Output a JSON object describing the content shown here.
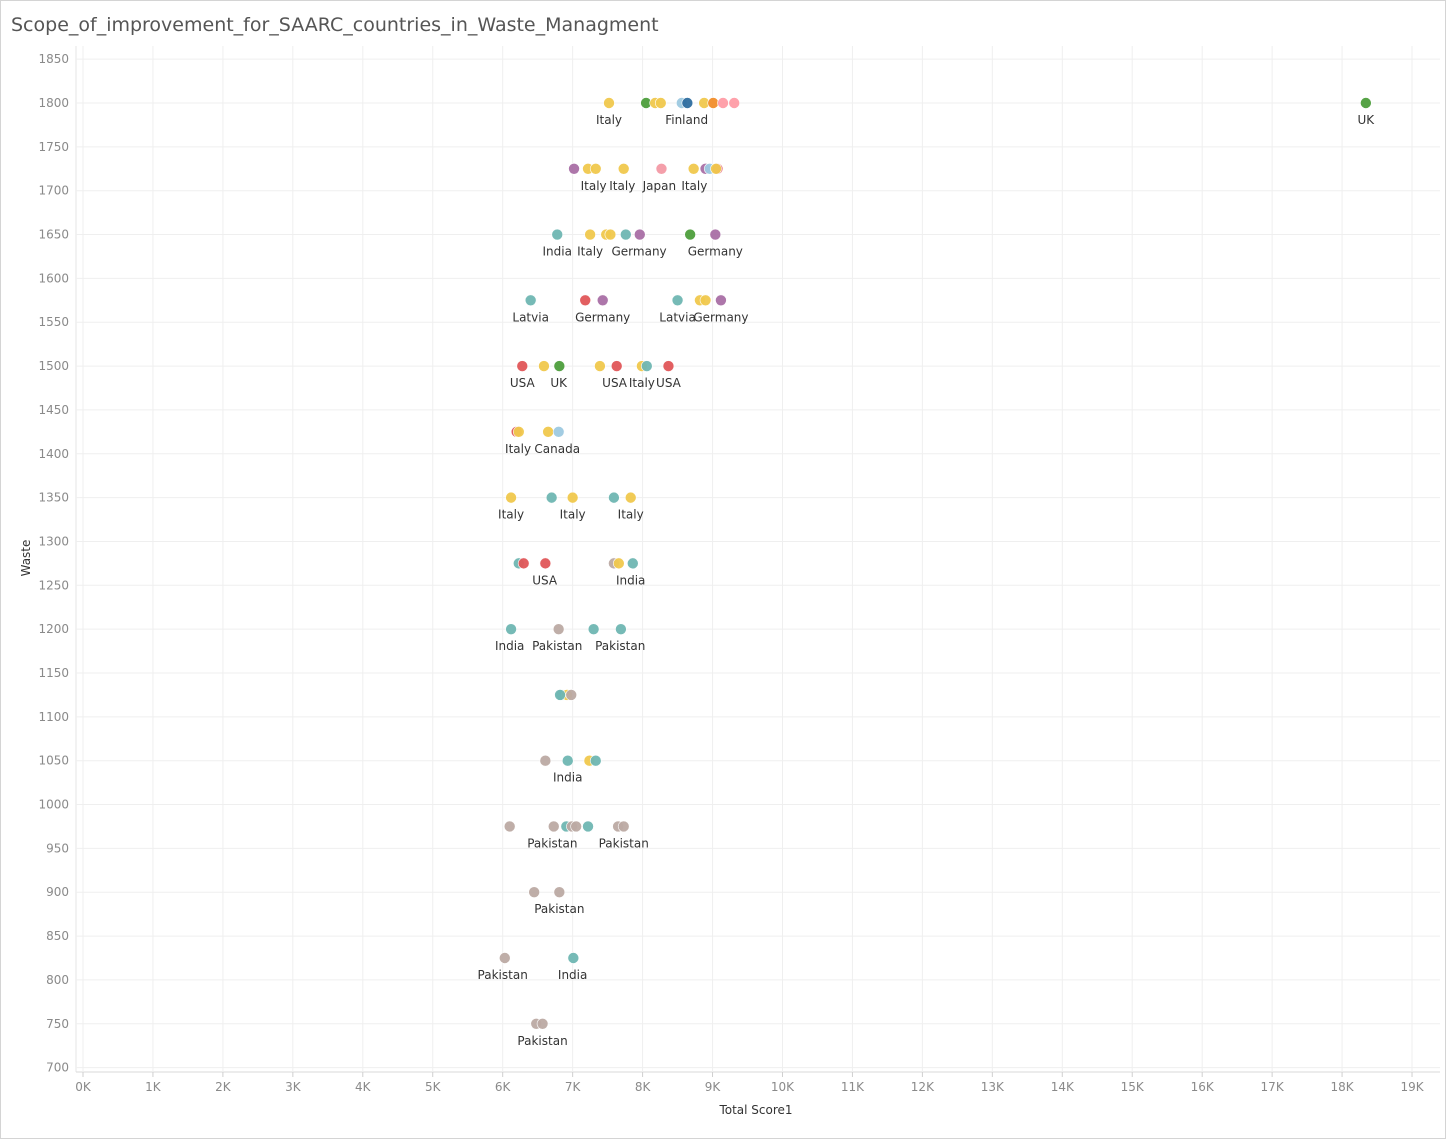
{
  "title": "Scope_of_improvement_for_SAARC_countries_in_Waste_Managment",
  "chart_data": {
    "type": "scatter",
    "title": "Scope_of_improvement_for_SAARC_countries_in_Waste_Managment",
    "xlabel": "Total Score1",
    "ylabel": "Waste",
    "xlim": [
      -100,
      19400
    ],
    "ylim": [
      695,
      1865
    ],
    "grid": true,
    "legend": "none",
    "x_ticks": [
      {
        "v": 0,
        "label": "0K"
      },
      {
        "v": 1000,
        "label": "1K"
      },
      {
        "v": 2000,
        "label": "2K"
      },
      {
        "v": 3000,
        "label": "3K"
      },
      {
        "v": 4000,
        "label": "4K"
      },
      {
        "v": 5000,
        "label": "5K"
      },
      {
        "v": 6000,
        "label": "6K"
      },
      {
        "v": 7000,
        "label": "7K"
      },
      {
        "v": 8000,
        "label": "8K"
      },
      {
        "v": 9000,
        "label": "9K"
      },
      {
        "v": 10000,
        "label": "10K"
      },
      {
        "v": 11000,
        "label": "11K"
      },
      {
        "v": 12000,
        "label": "12K"
      },
      {
        "v": 13000,
        "label": "13K"
      },
      {
        "v": 14000,
        "label": "14K"
      },
      {
        "v": 15000,
        "label": "15K"
      },
      {
        "v": 16000,
        "label": "16K"
      },
      {
        "v": 17000,
        "label": "17K"
      },
      {
        "v": 18000,
        "label": "18K"
      },
      {
        "v": 19000,
        "label": "19K"
      }
    ],
    "y_ticks": [
      {
        "v": 700,
        "label": "700"
      },
      {
        "v": 750,
        "label": "750"
      },
      {
        "v": 800,
        "label": "800"
      },
      {
        "v": 850,
        "label": "850"
      },
      {
        "v": 900,
        "label": "900"
      },
      {
        "v": 950,
        "label": "950"
      },
      {
        "v": 1000,
        "label": "1000"
      },
      {
        "v": 1050,
        "label": "1050"
      },
      {
        "v": 1100,
        "label": "1100"
      },
      {
        "v": 1150,
        "label": "1150"
      },
      {
        "v": 1200,
        "label": "1200"
      },
      {
        "v": 1250,
        "label": "1250"
      },
      {
        "v": 1300,
        "label": "1300"
      },
      {
        "v": 1350,
        "label": "1350"
      },
      {
        "v": 1400,
        "label": "1400"
      },
      {
        "v": 1450,
        "label": "1450"
      },
      {
        "v": 1500,
        "label": "1500"
      },
      {
        "v": 1550,
        "label": "1550"
      },
      {
        "v": 1600,
        "label": "1600"
      },
      {
        "v": 1650,
        "label": "1650"
      },
      {
        "v": 1700,
        "label": "1700"
      },
      {
        "v": 1750,
        "label": "1750"
      },
      {
        "v": 1800,
        "label": "1800"
      },
      {
        "v": 1850,
        "label": "1850"
      }
    ],
    "colors": {
      "yellow": "#f1c94d",
      "green": "#4e9f3d",
      "lightblue": "#9ecae1",
      "darkblue": "#2f6ea0",
      "orange": "#f28e2b",
      "salmon": "#ff9da7",
      "pink": "#f49aa6",
      "purple": "#a96fa6",
      "teal": "#6fb7b3",
      "red": "#e15759",
      "taupe": "#bcaaa4"
    },
    "points": [
      {
        "x": 7520,
        "y": 1800,
        "c": "yellow"
      },
      {
        "x": 8050,
        "y": 1800,
        "c": "green"
      },
      {
        "x": 8180,
        "y": 1800,
        "c": "yellow"
      },
      {
        "x": 8260,
        "y": 1800,
        "c": "yellow"
      },
      {
        "x": 8560,
        "y": 1800,
        "c": "lightblue"
      },
      {
        "x": 8640,
        "y": 1800,
        "c": "darkblue"
      },
      {
        "x": 8880,
        "y": 1800,
        "c": "yellow"
      },
      {
        "x": 9010,
        "y": 1800,
        "c": "orange"
      },
      {
        "x": 9150,
        "y": 1800,
        "c": "salmon"
      },
      {
        "x": 9310,
        "y": 1800,
        "c": "salmon"
      },
      {
        "x": 18340,
        "y": 1800,
        "c": "green"
      },
      {
        "x": 7020,
        "y": 1725,
        "c": "purple"
      },
      {
        "x": 7220,
        "y": 1725,
        "c": "yellow"
      },
      {
        "x": 7330,
        "y": 1725,
        "c": "yellow"
      },
      {
        "x": 7730,
        "y": 1725,
        "c": "yellow"
      },
      {
        "x": 8270,
        "y": 1725,
        "c": "pink"
      },
      {
        "x": 8730,
        "y": 1725,
        "c": "yellow"
      },
      {
        "x": 8900,
        "y": 1725,
        "c": "purple"
      },
      {
        "x": 8960,
        "y": 1725,
        "c": "lightblue"
      },
      {
        "x": 9070,
        "y": 1725,
        "c": "red"
      },
      {
        "x": 9050,
        "y": 1725,
        "c": "yellow"
      },
      {
        "x": 6780,
        "y": 1650,
        "c": "teal"
      },
      {
        "x": 7250,
        "y": 1650,
        "c": "yellow"
      },
      {
        "x": 7480,
        "y": 1650,
        "c": "yellow"
      },
      {
        "x": 7540,
        "y": 1650,
        "c": "yellow"
      },
      {
        "x": 7760,
        "y": 1650,
        "c": "teal"
      },
      {
        "x": 7960,
        "y": 1650,
        "c": "purple"
      },
      {
        "x": 8680,
        "y": 1650,
        "c": "green"
      },
      {
        "x": 9040,
        "y": 1650,
        "c": "purple"
      },
      {
        "x": 6400,
        "y": 1575,
        "c": "teal"
      },
      {
        "x": 7180,
        "y": 1575,
        "c": "red"
      },
      {
        "x": 7430,
        "y": 1575,
        "c": "purple"
      },
      {
        "x": 8500,
        "y": 1575,
        "c": "teal"
      },
      {
        "x": 8820,
        "y": 1575,
        "c": "yellow"
      },
      {
        "x": 8900,
        "y": 1575,
        "c": "yellow"
      },
      {
        "x": 9120,
        "y": 1575,
        "c": "purple"
      },
      {
        "x": 6280,
        "y": 1500,
        "c": "red"
      },
      {
        "x": 6590,
        "y": 1500,
        "c": "yellow"
      },
      {
        "x": 6810,
        "y": 1500,
        "c": "green"
      },
      {
        "x": 7390,
        "y": 1500,
        "c": "yellow"
      },
      {
        "x": 7630,
        "y": 1500,
        "c": "red"
      },
      {
        "x": 7990,
        "y": 1500,
        "c": "yellow"
      },
      {
        "x": 8060,
        "y": 1500,
        "c": "teal"
      },
      {
        "x": 8370,
        "y": 1500,
        "c": "red"
      },
      {
        "x": 6200,
        "y": 1425,
        "c": "red"
      },
      {
        "x": 6230,
        "y": 1425,
        "c": "yellow"
      },
      {
        "x": 6650,
        "y": 1425,
        "c": "yellow"
      },
      {
        "x": 6800,
        "y": 1425,
        "c": "lightblue"
      },
      {
        "x": 6120,
        "y": 1350,
        "c": "yellow"
      },
      {
        "x": 6700,
        "y": 1350,
        "c": "teal"
      },
      {
        "x": 7000,
        "y": 1350,
        "c": "yellow"
      },
      {
        "x": 7590,
        "y": 1350,
        "c": "teal"
      },
      {
        "x": 7830,
        "y": 1350,
        "c": "yellow"
      },
      {
        "x": 6230,
        "y": 1275,
        "c": "teal"
      },
      {
        "x": 6300,
        "y": 1275,
        "c": "red"
      },
      {
        "x": 6610,
        "y": 1275,
        "c": "red"
      },
      {
        "x": 7590,
        "y": 1275,
        "c": "taupe"
      },
      {
        "x": 7660,
        "y": 1275,
        "c": "yellow"
      },
      {
        "x": 7860,
        "y": 1275,
        "c": "teal"
      },
      {
        "x": 6120,
        "y": 1200,
        "c": "teal"
      },
      {
        "x": 6800,
        "y": 1200,
        "c": "taupe"
      },
      {
        "x": 7300,
        "y": 1200,
        "c": "teal"
      },
      {
        "x": 7690,
        "y": 1200,
        "c": "teal"
      },
      {
        "x": 6840,
        "y": 1125,
        "c": "teal"
      },
      {
        "x": 6920,
        "y": 1125,
        "c": "yellow"
      },
      {
        "x": 6980,
        "y": 1125,
        "c": "taupe"
      },
      {
        "x": 6820,
        "y": 1125,
        "c": "teal"
      },
      {
        "x": 6610,
        "y": 1050,
        "c": "taupe"
      },
      {
        "x": 6930,
        "y": 1050,
        "c": "teal"
      },
      {
        "x": 7240,
        "y": 1050,
        "c": "yellow"
      },
      {
        "x": 7330,
        "y": 1050,
        "c": "teal"
      },
      {
        "x": 6100,
        "y": 975,
        "c": "taupe"
      },
      {
        "x": 6730,
        "y": 975,
        "c": "taupe"
      },
      {
        "x": 6910,
        "y": 975,
        "c": "teal"
      },
      {
        "x": 6990,
        "y": 975,
        "c": "taupe"
      },
      {
        "x": 7050,
        "y": 975,
        "c": "taupe"
      },
      {
        "x": 7220,
        "y": 975,
        "c": "teal"
      },
      {
        "x": 7650,
        "y": 975,
        "c": "taupe"
      },
      {
        "x": 7730,
        "y": 975,
        "c": "taupe"
      },
      {
        "x": 6450,
        "y": 900,
        "c": "taupe"
      },
      {
        "x": 6810,
        "y": 900,
        "c": "taupe"
      },
      {
        "x": 6030,
        "y": 825,
        "c": "taupe"
      },
      {
        "x": 7010,
        "y": 825,
        "c": "teal"
      },
      {
        "x": 6480,
        "y": 750,
        "c": "taupe"
      },
      {
        "x": 6570,
        "y": 750,
        "c": "taupe"
      }
    ],
    "labels": [
      {
        "x": 7520,
        "y": 1800,
        "text": "Italy"
      },
      {
        "x": 8630,
        "y": 1800,
        "text": "Finland"
      },
      {
        "x": 18340,
        "y": 1800,
        "text": "UK"
      },
      {
        "x": 7300,
        "y": 1725,
        "text": "Italy"
      },
      {
        "x": 7710,
        "y": 1725,
        "text": "Italy"
      },
      {
        "x": 8240,
        "y": 1725,
        "text": "Japan"
      },
      {
        "x": 8740,
        "y": 1725,
        "text": "Italy"
      },
      {
        "x": 6780,
        "y": 1650,
        "text": "India"
      },
      {
        "x": 7250,
        "y": 1650,
        "text": "Italy"
      },
      {
        "x": 7950,
        "y": 1650,
        "text": "Germany"
      },
      {
        "x": 9040,
        "y": 1650,
        "text": "Germany"
      },
      {
        "x": 6400,
        "y": 1575,
        "text": "Latvia"
      },
      {
        "x": 7430,
        "y": 1575,
        "text": "Germany"
      },
      {
        "x": 8500,
        "y": 1575,
        "text": "Latvia"
      },
      {
        "x": 9120,
        "y": 1575,
        "text": "Germany"
      },
      {
        "x": 6280,
        "y": 1500,
        "text": "USA"
      },
      {
        "x": 6800,
        "y": 1500,
        "text": "UK"
      },
      {
        "x": 7600,
        "y": 1500,
        "text": "USA"
      },
      {
        "x": 7990,
        "y": 1500,
        "text": "Italy"
      },
      {
        "x": 8370,
        "y": 1500,
        "text": "USA"
      },
      {
        "x": 6220,
        "y": 1425,
        "text": "Italy"
      },
      {
        "x": 6780,
        "y": 1425,
        "text": "Canada"
      },
      {
        "x": 6120,
        "y": 1350,
        "text": "Italy"
      },
      {
        "x": 7000,
        "y": 1350,
        "text": "Italy"
      },
      {
        "x": 7830,
        "y": 1350,
        "text": "Italy"
      },
      {
        "x": 6600,
        "y": 1275,
        "text": "USA"
      },
      {
        "x": 7830,
        "y": 1275,
        "text": "India"
      },
      {
        "x": 6100,
        "y": 1200,
        "text": "India"
      },
      {
        "x": 6780,
        "y": 1200,
        "text": "Pakistan"
      },
      {
        "x": 7680,
        "y": 1200,
        "text": "Pakistan"
      },
      {
        "x": 6930,
        "y": 1050,
        "text": "India"
      },
      {
        "x": 6710,
        "y": 975,
        "text": "Pakistan"
      },
      {
        "x": 7730,
        "y": 975,
        "text": "Pakistan"
      },
      {
        "x": 6810,
        "y": 900,
        "text": "Pakistan"
      },
      {
        "x": 6000,
        "y": 825,
        "text": "Pakistan"
      },
      {
        "x": 7000,
        "y": 825,
        "text": "India"
      },
      {
        "x": 6570,
        "y": 750,
        "text": "Pakistan"
      }
    ]
  }
}
